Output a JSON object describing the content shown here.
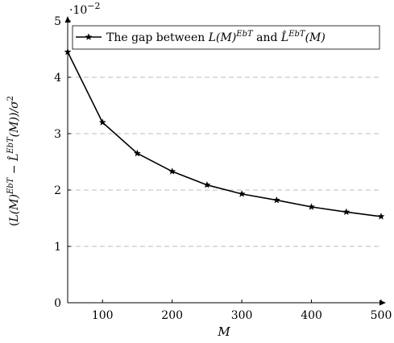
{
  "chart_data": {
    "type": "line",
    "x": [
      50,
      100,
      150,
      200,
      250,
      300,
      350,
      400,
      450,
      500
    ],
    "series": [
      {
        "name_text": "The gap between ",
        "name_math1": "L(M)",
        "name_math1_sup": "EbT",
        "name_and": " and ",
        "name_math2": "L̂",
        "name_math2_sup": "EbT",
        "name_math2_tail": "(M)",
        "values": [
          4.45,
          3.2,
          2.65,
          2.33,
          2.09,
          1.93,
          1.82,
          1.7,
          1.61,
          1.53
        ],
        "color": "#000000",
        "marker": "star"
      }
    ],
    "xlim": [
      50,
      500
    ],
    "ylim": [
      0,
      5
    ],
    "xticks": [
      "100",
      "200",
      "300",
      "400",
      "500"
    ],
    "xtick_values": [
      100,
      200,
      300,
      400,
      500
    ],
    "yticks": [
      "0",
      "1",
      "2",
      "3",
      "4",
      "5"
    ],
    "ytick_values": [
      0,
      1,
      2,
      3,
      4,
      5
    ],
    "y_scale_note": "·10",
    "y_scale_exp": "−2",
    "xlabel": "M",
    "ylabel_parts": {
      "open": "(",
      "a": "L(M)",
      "a_sup": "EbT",
      "minus": " − ",
      "b": "L̂",
      "b_sup": "EbT",
      "b_tail": "(M))",
      "div": "/σ",
      "div_sup": "2"
    },
    "grid": "horizontal-dashed",
    "legend": "top"
  }
}
